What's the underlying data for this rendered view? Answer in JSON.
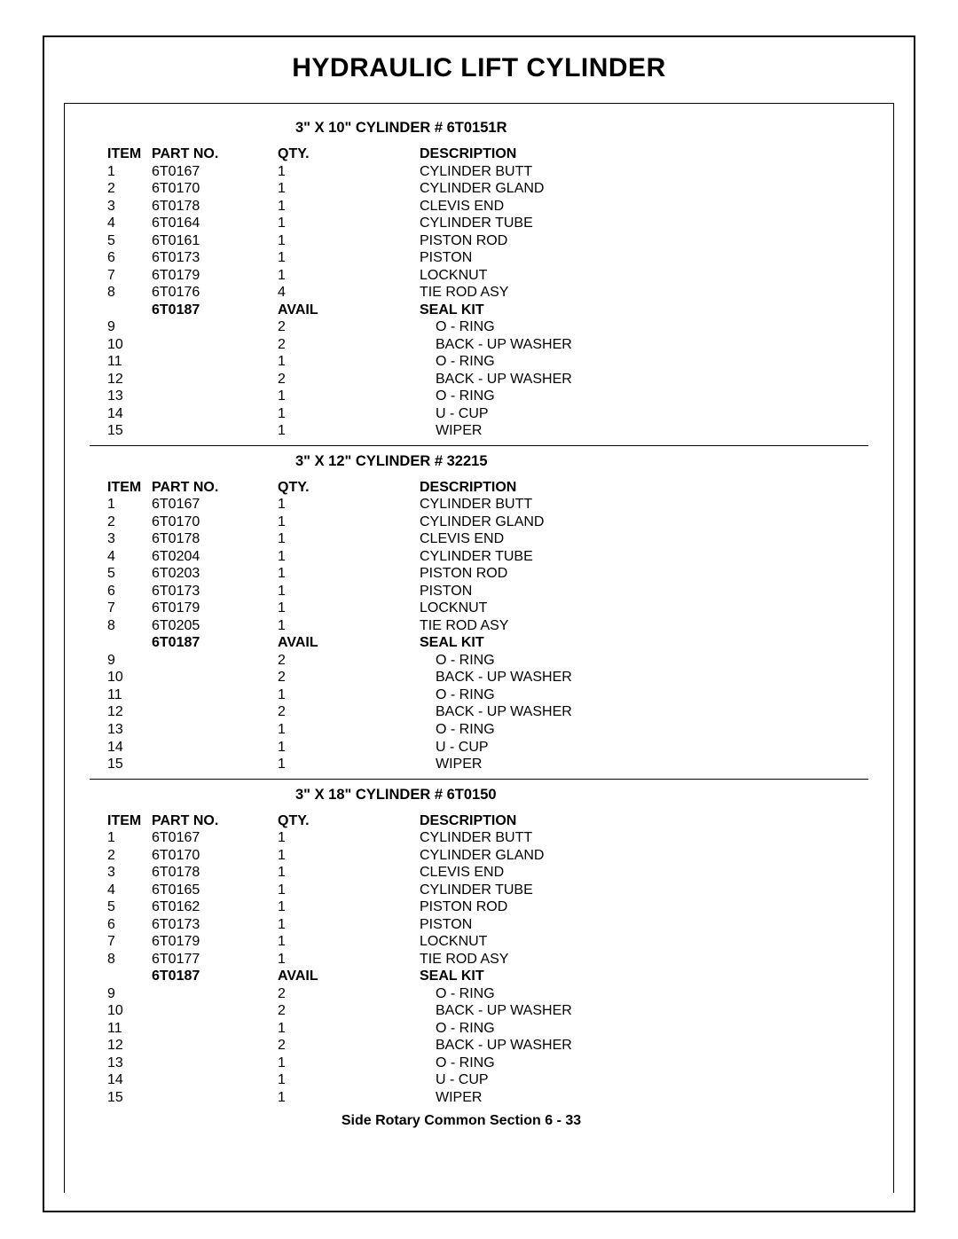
{
  "page_title": "HYDRAULIC LIFT CYLINDER",
  "footer": "Side Rotary Common Section  6 - 33",
  "columns": {
    "item": "ITEM",
    "part": "PART NO.",
    "qty": "QTY.",
    "desc": "DESCRIPTION"
  },
  "sections": [
    {
      "title": "3\" X 10\" CYLINDER   # 6T0151R",
      "rows": [
        {
          "item": "1",
          "part": "6T0167",
          "qty": "1",
          "desc": "CYLINDER BUTT"
        },
        {
          "item": "2",
          "part": "6T0170",
          "qty": "1",
          "desc": "CYLINDER GLAND"
        },
        {
          "item": "3",
          "part": "6T0178",
          "qty": "1",
          "desc": "CLEVIS END"
        },
        {
          "item": "4",
          "part": "6T0164",
          "qty": "1",
          "desc": "CYLINDER TUBE"
        },
        {
          "item": "5",
          "part": "6T0161",
          "qty": "1",
          "desc": "PISTON ROD"
        },
        {
          "item": "6",
          "part": "6T0173",
          "qty": "1",
          "desc": "PISTON"
        },
        {
          "item": "7",
          "part": "6T0179",
          "qty": "1",
          "desc": "LOCKNUT"
        },
        {
          "item": "8",
          "part": "6T0176",
          "qty": "4",
          "desc": "TIE ROD ASY"
        },
        {
          "item": "",
          "part": "6T0187",
          "qty": "AVAIL",
          "desc": "SEAL KIT",
          "bold": true
        },
        {
          "item": "9",
          "part": "",
          "qty": "2",
          "desc": "O - RING",
          "indent": true
        },
        {
          "item": "10",
          "part": "",
          "qty": "2",
          "desc": "BACK - UP WASHER",
          "indent": true
        },
        {
          "item": "11",
          "part": "",
          "qty": "1",
          "desc": "O - RING",
          "indent": true
        },
        {
          "item": "12",
          "part": "",
          "qty": "2",
          "desc": "BACK - UP WASHER",
          "indent": true
        },
        {
          "item": "13",
          "part": "",
          "qty": "1",
          "desc": "O - RING",
          "indent": true
        },
        {
          "item": "14",
          "part": "",
          "qty": "1",
          "desc": "U - CUP",
          "indent": true
        },
        {
          "item": "15",
          "part": "",
          "qty": "1",
          "desc": "WIPER",
          "indent": true
        }
      ]
    },
    {
      "title": "3\" X 12\" CYLINDER   # 32215",
      "rows": [
        {
          "item": "1",
          "part": "6T0167",
          "qty": "1",
          "desc": "CYLINDER BUTT"
        },
        {
          "item": "2",
          "part": "6T0170",
          "qty": "1",
          "desc": "CYLINDER GLAND"
        },
        {
          "item": "3",
          "part": "6T0178",
          "qty": "1",
          "desc": "CLEVIS END"
        },
        {
          "item": "4",
          "part": "6T0204",
          "qty": "1",
          "desc": "CYLINDER TUBE"
        },
        {
          "item": "5",
          "part": "6T0203",
          "qty": "1",
          "desc": "PISTON ROD"
        },
        {
          "item": "6",
          "part": "6T0173",
          "qty": "1",
          "desc": "PISTON"
        },
        {
          "item": "7",
          "part": "6T0179",
          "qty": "1",
          "desc": "LOCKNUT"
        },
        {
          "item": "8",
          "part": "6T0205",
          "qty": "1",
          "desc": "TIE ROD ASY"
        },
        {
          "item": "",
          "part": "6T0187",
          "qty": "AVAIL",
          "desc": "SEAL KIT",
          "bold": true
        },
        {
          "item": "9",
          "part": "",
          "qty": "2",
          "desc": "O - RING",
          "indent": true
        },
        {
          "item": "10",
          "part": "",
          "qty": "2",
          "desc": "BACK - UP WASHER",
          "indent": true
        },
        {
          "item": "11",
          "part": "",
          "qty": "1",
          "desc": "O - RING",
          "indent": true
        },
        {
          "item": "12",
          "part": "",
          "qty": "2",
          "desc": "BACK - UP WASHER",
          "indent": true
        },
        {
          "item": "13",
          "part": "",
          "qty": "1",
          "desc": "O - RING",
          "indent": true
        },
        {
          "item": "14",
          "part": "",
          "qty": "1",
          "desc": "U - CUP",
          "indent": true
        },
        {
          "item": "15",
          "part": "",
          "qty": "1",
          "desc": "WIPER",
          "indent": true
        }
      ]
    },
    {
      "title": "3\" X 18\" CYLINDER   # 6T0150",
      "rows": [
        {
          "item": "1",
          "part": "6T0167",
          "qty": "1",
          "desc": "CYLINDER BUTT"
        },
        {
          "item": "2",
          "part": "6T0170",
          "qty": "1",
          "desc": "CYLINDER GLAND"
        },
        {
          "item": "3",
          "part": "6T0178",
          "qty": "1",
          "desc": "CLEVIS END"
        },
        {
          "item": "4",
          "part": "6T0165",
          "qty": "1",
          "desc": "CYLINDER TUBE"
        },
        {
          "item": "5",
          "part": "6T0162",
          "qty": "1",
          "desc": "PISTON ROD"
        },
        {
          "item": "6",
          "part": "6T0173",
          "qty": "1",
          "desc": "PISTON"
        },
        {
          "item": "7",
          "part": "6T0179",
          "qty": "1",
          "desc": "LOCKNUT"
        },
        {
          "item": "8",
          "part": "6T0177",
          "qty": "1",
          "desc": "TIE ROD ASY"
        },
        {
          "item": "",
          "part": "6T0187",
          "qty": "AVAIL",
          "desc": "SEAL KIT",
          "bold": true
        },
        {
          "item": "9",
          "part": "",
          "qty": "2",
          "desc": "O - RING",
          "indent": true
        },
        {
          "item": "10",
          "part": "",
          "qty": "2",
          "desc": "BACK - UP WASHER",
          "indent": true
        },
        {
          "item": "11",
          "part": "",
          "qty": "1",
          "desc": "O - RING",
          "indent": true
        },
        {
          "item": "12",
          "part": "",
          "qty": "2",
          "desc": "BACK - UP WASHER",
          "indent": true
        },
        {
          "item": "13",
          "part": "",
          "qty": "1",
          "desc": "O - RING",
          "indent": true
        },
        {
          "item": "14",
          "part": "",
          "qty": "1",
          "desc": "U - CUP",
          "indent": true
        },
        {
          "item": "15",
          "part": "",
          "qty": "1",
          "desc": "WIPER",
          "indent": true
        }
      ]
    }
  ]
}
